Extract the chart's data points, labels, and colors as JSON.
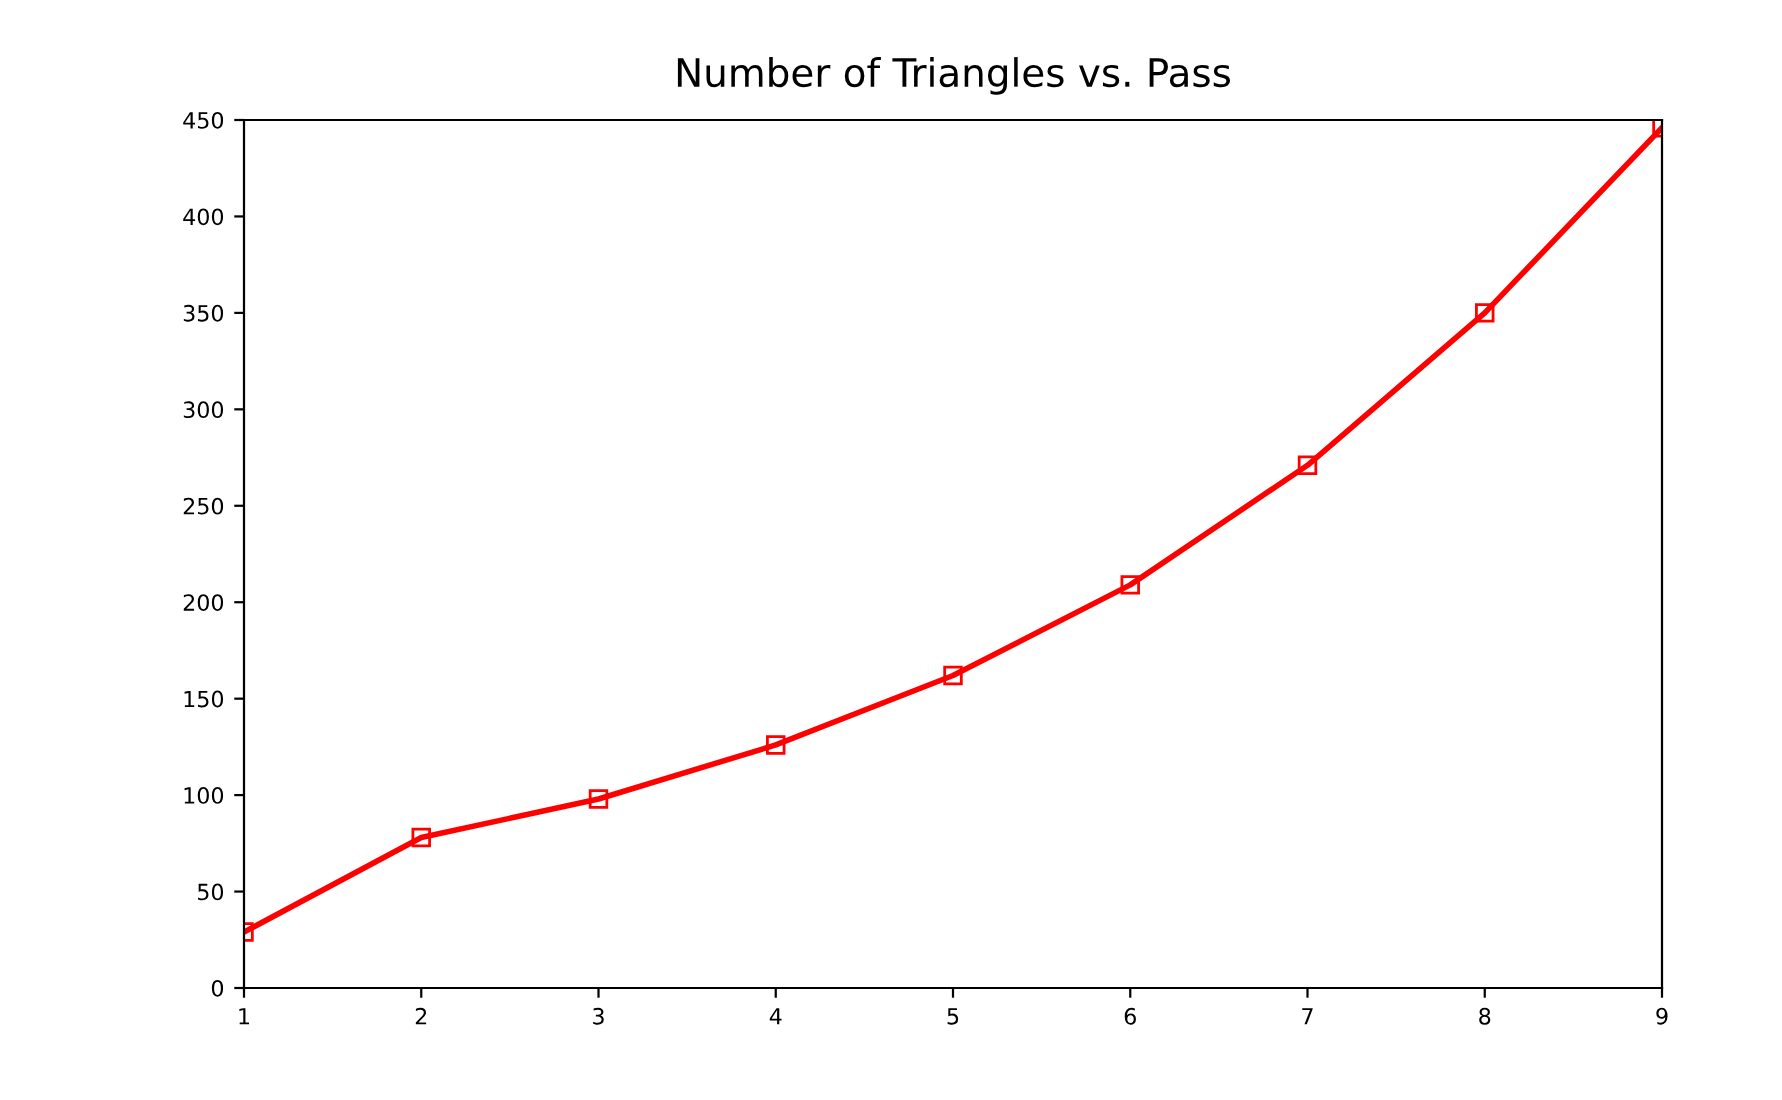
{
  "chart_data": {
    "type": "line",
    "title": "Number of Triangles vs. Pass",
    "x": [
      1,
      2,
      3,
      4,
      5,
      6,
      7,
      8,
      9
    ],
    "series": [
      {
        "color": "#ff0000",
        "values": [
          29,
          78,
          98,
          126,
          162,
          209,
          271,
          350,
          446
        ]
      }
    ],
    "xlim": [
      1,
      9
    ],
    "xticks": [
      1,
      2,
      3,
      4,
      5,
      6,
      7,
      8,
      9
    ],
    "ylim": [
      0,
      450
    ],
    "yticks": [
      0,
      50,
      100,
      150,
      200,
      250,
      300,
      350,
      400,
      450
    ],
    "marker": "square",
    "line_style": "solid",
    "grid": false,
    "legend": false
  }
}
